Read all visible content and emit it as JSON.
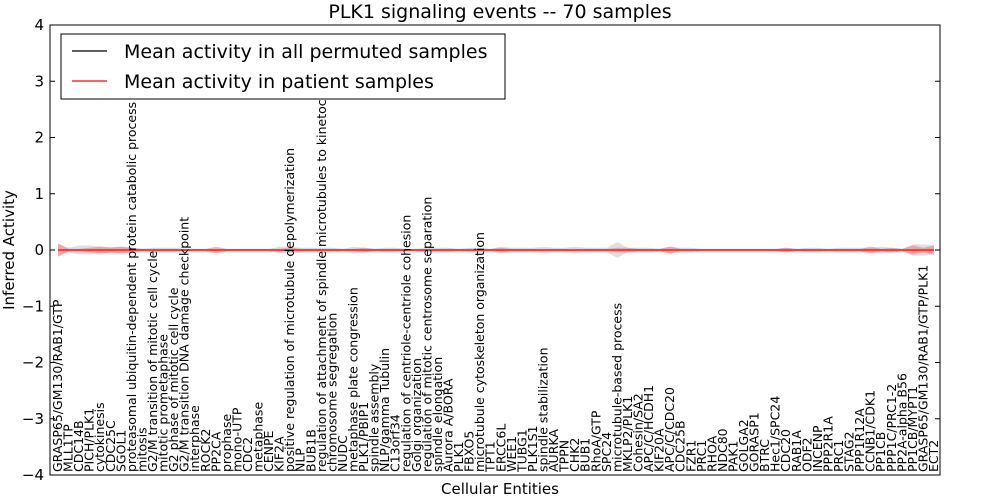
{
  "chart_data": {
    "type": "line",
    "title": "PLK1 signaling events -- 70 samples",
    "xlabel": "Cellular Entities",
    "ylabel": "Inferred Activity",
    "ylim": [
      -4,
      4
    ],
    "yticks": [
      -4,
      -3,
      -2,
      -1,
      0,
      1,
      2,
      3,
      4
    ],
    "ytick_labels": [
      "−4",
      "−3",
      "−2",
      "−1",
      "0",
      "1",
      "2",
      "3",
      "4"
    ],
    "legend": {
      "placement": "top-left",
      "entries": [
        {
          "label": "Mean activity in all permuted samples",
          "color": "#000000"
        },
        {
          "label": "Mean activity in patient samples",
          "color": "#ff0000"
        }
      ]
    },
    "categories": [
      "GRASP65/GM130/RAB1/GTP",
      "MLL1TP",
      "CDC14B",
      "PICH/PLK1",
      "cytokinesis",
      "CDC25C",
      "SGOL1",
      "proteasomal ubiquitin-dependent protein catabolic process",
      "mitosis",
      "G2/M transition of mitotic cell cycle",
      "mitotic prometaphase",
      "G2 phase of mitotic cell cycle",
      "G2/M transition DNA damage checkpoint",
      "interphase",
      "ROCK2",
      "PP2CA",
      "prophase",
      "mono-UTP",
      "CDC2",
      "metaphase",
      "CENPE",
      "KIF2A",
      "positive regulation of microtubule depolymerization",
      "NLP",
      "BUB1B",
      "regulation of attachment of spindle microtubules to kinetochore",
      "chromosome segregation",
      "NUDC",
      "metaphase plate congression",
      "PLK1/PBIP1",
      "spindle assembly",
      "NLP/gamma Tubulin",
      "C13orf34",
      "regulation of centriole-centriole cohesion",
      "Golgi organization",
      "regulation of mitotic centrosome separation",
      "spindle elongation",
      "Aurora A/BORA",
      "PLK1",
      "FBXO5",
      "microtubule cytoskeleton organization",
      "TPT1",
      "ERCC6L",
      "WEE1",
      "TUBG1",
      "PLK1S1",
      "spindle stabilization",
      "AURKA",
      "TPPN",
      "CHK2",
      "BUB1",
      "RhoA/GTP",
      "SPC24",
      "microtubule-based process",
      "MKLP2/PLK1",
      "Cohesin/SA2",
      "APC/C/HCDH1",
      "KIF20A",
      "APC/C/CDC20",
      "CDC25B",
      "FZR1",
      "PRC1",
      "RHOA",
      "NDC80",
      "PAK1",
      "GOLGA2",
      "GORASP1",
      "BTRC",
      "Hec1/SPC24",
      "CDC20",
      "RAB1A",
      "ODF2",
      "INCENP",
      "PPP2R1A",
      "PRC1",
      "STAG2",
      "PPP1R12A",
      "CCNB1/CDK1",
      "PP1CB",
      "PPP1C/PRC1-2",
      "PP2A-alpha B56",
      "PP1CB/MYPT1",
      "GRASP65/GM130/RAB1/GTP/PLK1",
      "ECT2"
    ],
    "series": [
      {
        "name": "Mean activity in all permuted samples",
        "color": "#000000",
        "value_all": 0.0
      },
      {
        "name": "Mean activity in patient samples",
        "color": "#ff0000",
        "value_all": 0.0
      }
    ],
    "patient_band_halfwidth": [
      0.12,
      0.02,
      0.02,
      0.04,
      0.06,
      0.05,
      0.06,
      0.04,
      0.02,
      0.02,
      0.02,
      0.02,
      0.02,
      0.02,
      0.02,
      0.06,
      0.02,
      0.02,
      0.02,
      0.02,
      0.02,
      0.02,
      0.04,
      0.02,
      0.02,
      0.02,
      0.02,
      0.02,
      0.02,
      0.04,
      0.02,
      0.02,
      0.02,
      0.02,
      0.02,
      0.02,
      0.02,
      0.02,
      0.02,
      0.02,
      0.02,
      0.02,
      0.04,
      0.02,
      0.02,
      0.02,
      0.02,
      0.02,
      0.02,
      0.02,
      0.02,
      0.02,
      0.02,
      0.04,
      0.04,
      0.02,
      0.02,
      0.02,
      0.06,
      0.02,
      0.02,
      0.02,
      0.02,
      0.02,
      0.02,
      0.02,
      0.02,
      0.02,
      0.02,
      0.04,
      0.02,
      0.02,
      0.02,
      0.02,
      0.02,
      0.02,
      0.02,
      0.06,
      0.02,
      0.04,
      0.02,
      0.08,
      0.04,
      0.08
    ],
    "permuted_band_halfwidth": [
      0.1,
      0.04,
      0.08,
      0.08,
      0.06,
      0.04,
      0.06,
      0.04,
      0.02,
      0.04,
      0.04,
      0.04,
      0.02,
      0.02,
      0.02,
      0.02,
      0.02,
      0.02,
      0.02,
      0.02,
      0.02,
      0.06,
      0.06,
      0.04,
      0.04,
      0.04,
      0.04,
      0.02,
      0.06,
      0.04,
      0.02,
      0.04,
      0.04,
      0.02,
      0.02,
      0.04,
      0.04,
      0.04,
      0.02,
      0.04,
      0.04,
      0.02,
      0.06,
      0.04,
      0.04,
      0.04,
      0.06,
      0.04,
      0.04,
      0.06,
      0.04,
      0.04,
      0.04,
      0.14,
      0.04,
      0.04,
      0.04,
      0.02,
      0.06,
      0.04,
      0.04,
      0.02,
      0.02,
      0.02,
      0.02,
      0.02,
      0.02,
      0.02,
      0.02,
      0.04,
      0.02,
      0.04,
      0.04,
      0.02,
      0.04,
      0.04,
      0.04,
      0.04,
      0.06,
      0.04,
      0.02,
      0.1,
      0.1,
      0.08
    ]
  }
}
